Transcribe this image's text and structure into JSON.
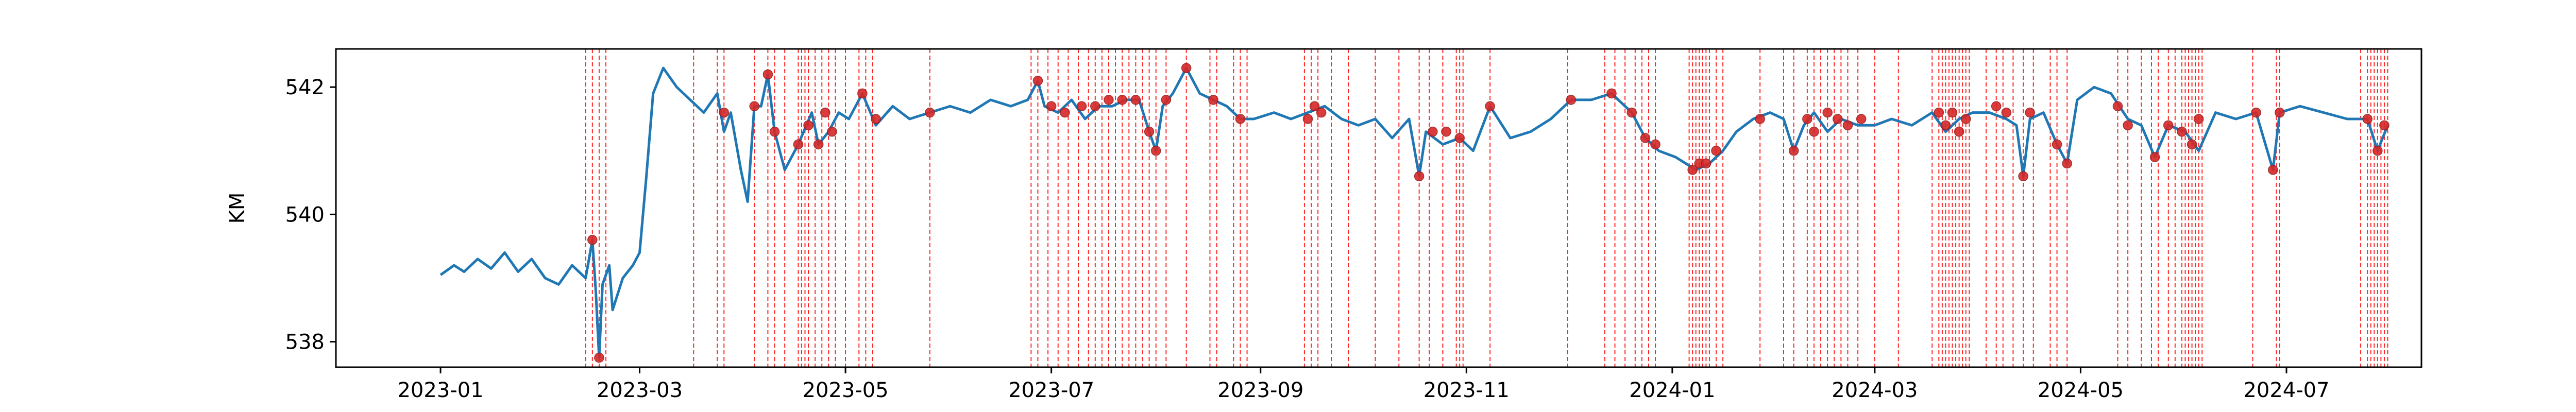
{
  "chart_data": {
    "type": "line",
    "title": "",
    "xlabel": "",
    "ylabel": "KM",
    "xlim": [
      "2022-12-01",
      "2024-08-10"
    ],
    "ylim": [
      537.6,
      542.6
    ],
    "x_ticks": [
      "2023-01",
      "2023-03",
      "2023-05",
      "2023-07",
      "2023-09",
      "2023-11",
      "2024-01",
      "2024-03",
      "2024-05",
      "2024-07"
    ],
    "y_ticks": [
      538,
      540,
      542
    ],
    "grid": false,
    "legend": "none",
    "colors": {
      "line": "#1f77b4",
      "marker": "#d62728",
      "vline": "#ff0000"
    },
    "series": [
      {
        "values": [
          [
            "2023-01-01",
            539.05
          ],
          [
            "2023-01-05",
            539.2
          ],
          [
            "2023-01-08",
            539.1
          ],
          [
            "2023-01-12",
            539.3
          ],
          [
            "2023-01-16",
            539.15
          ],
          [
            "2023-01-20",
            539.4
          ],
          [
            "2023-01-24",
            539.1
          ],
          [
            "2023-01-28",
            539.3
          ],
          [
            "2023-02-01",
            539.0
          ],
          [
            "2023-02-05",
            538.9
          ],
          [
            "2023-02-09",
            539.2
          ],
          [
            "2023-02-13",
            539.0
          ],
          [
            "2023-02-15",
            539.6
          ],
          [
            "2023-02-16",
            538.8
          ],
          [
            "2023-02-17",
            537.75
          ],
          [
            "2023-02-18",
            538.9
          ],
          [
            "2023-02-20",
            539.2
          ],
          [
            "2023-02-21",
            538.5
          ],
          [
            "2023-02-24",
            539.0
          ],
          [
            "2023-02-27",
            539.2
          ],
          [
            "2023-03-01",
            539.4
          ],
          [
            "2023-03-03",
            540.6
          ],
          [
            "2023-03-05",
            541.9
          ],
          [
            "2023-03-08",
            542.3
          ],
          [
            "2023-03-12",
            542.0
          ],
          [
            "2023-03-16",
            541.8
          ],
          [
            "2023-03-20",
            541.6
          ],
          [
            "2023-03-24",
            541.9
          ],
          [
            "2023-03-26",
            541.3
          ],
          [
            "2023-03-28",
            541.6
          ],
          [
            "2023-03-31",
            540.7
          ],
          [
            "2023-04-02",
            540.2
          ],
          [
            "2023-04-04",
            541.7
          ],
          [
            "2023-04-06",
            541.7
          ],
          [
            "2023-04-08",
            542.2
          ],
          [
            "2023-04-10",
            541.3
          ],
          [
            "2023-04-13",
            540.7
          ],
          [
            "2023-04-17",
            541.1
          ],
          [
            "2023-04-21",
            541.6
          ],
          [
            "2023-04-23",
            541.1
          ],
          [
            "2023-04-26",
            541.3
          ],
          [
            "2023-04-29",
            541.6
          ],
          [
            "2023-05-02",
            541.5
          ],
          [
            "2023-05-06",
            541.9
          ],
          [
            "2023-05-10",
            541.4
          ],
          [
            "2023-05-15",
            541.7
          ],
          [
            "2023-05-20",
            541.5
          ],
          [
            "2023-05-26",
            541.6
          ],
          [
            "2023-06-01",
            541.7
          ],
          [
            "2023-06-07",
            541.6
          ],
          [
            "2023-06-13",
            541.8
          ],
          [
            "2023-06-19",
            541.7
          ],
          [
            "2023-06-24",
            541.8
          ],
          [
            "2023-06-27",
            542.1
          ],
          [
            "2023-06-29",
            541.7
          ],
          [
            "2023-07-03",
            541.6
          ],
          [
            "2023-07-07",
            541.8
          ],
          [
            "2023-07-11",
            541.5
          ],
          [
            "2023-07-15",
            541.7
          ],
          [
            "2023-07-19",
            541.7
          ],
          [
            "2023-07-23",
            541.8
          ],
          [
            "2023-07-27",
            541.8
          ],
          [
            "2023-07-30",
            541.3
          ],
          [
            "2023-08-01",
            541.0
          ],
          [
            "2023-08-03",
            541.7
          ],
          [
            "2023-08-06",
            541.9
          ],
          [
            "2023-08-10",
            542.3
          ],
          [
            "2023-08-14",
            541.9
          ],
          [
            "2023-08-18",
            541.8
          ],
          [
            "2023-08-22",
            541.7
          ],
          [
            "2023-08-26",
            541.5
          ],
          [
            "2023-08-30",
            541.5
          ],
          [
            "2023-09-05",
            541.6
          ],
          [
            "2023-09-10",
            541.5
          ],
          [
            "2023-09-15",
            541.6
          ],
          [
            "2023-09-20",
            541.7
          ],
          [
            "2023-09-25",
            541.5
          ],
          [
            "2023-09-30",
            541.4
          ],
          [
            "2023-10-05",
            541.5
          ],
          [
            "2023-10-10",
            541.2
          ],
          [
            "2023-10-15",
            541.5
          ],
          [
            "2023-10-18",
            540.6
          ],
          [
            "2023-10-20",
            541.3
          ],
          [
            "2023-10-25",
            541.1
          ],
          [
            "2023-10-30",
            541.2
          ],
          [
            "2023-11-03",
            541.0
          ],
          [
            "2023-11-08",
            541.7
          ],
          [
            "2023-11-14",
            541.2
          ],
          [
            "2023-11-20",
            541.3
          ],
          [
            "2023-11-26",
            541.5
          ],
          [
            "2023-12-02",
            541.8
          ],
          [
            "2023-12-08",
            541.8
          ],
          [
            "2023-12-14",
            541.9
          ],
          [
            "2023-12-20",
            541.6
          ],
          [
            "2023-12-24",
            541.2
          ],
          [
            "2023-12-28",
            541.0
          ],
          [
            "2024-01-02",
            540.9
          ],
          [
            "2024-01-08",
            540.7
          ],
          [
            "2024-01-12",
            540.8
          ],
          [
            "2024-01-16",
            541.0
          ],
          [
            "2024-01-20",
            541.3
          ],
          [
            "2024-01-25",
            541.5
          ],
          [
            "2024-01-30",
            541.6
          ],
          [
            "2024-02-03",
            541.5
          ],
          [
            "2024-02-06",
            541.0
          ],
          [
            "2024-02-09",
            541.4
          ],
          [
            "2024-02-12",
            541.6
          ],
          [
            "2024-02-16",
            541.3
          ],
          [
            "2024-02-20",
            541.5
          ],
          [
            "2024-02-25",
            541.4
          ],
          [
            "2024-03-01",
            541.4
          ],
          [
            "2024-03-06",
            541.5
          ],
          [
            "2024-03-12",
            541.4
          ],
          [
            "2024-03-18",
            541.6
          ],
          [
            "2024-03-22",
            541.3
          ],
          [
            "2024-03-26",
            541.5
          ],
          [
            "2024-03-30",
            541.6
          ],
          [
            "2024-04-04",
            541.6
          ],
          [
            "2024-04-09",
            541.5
          ],
          [
            "2024-04-12",
            541.4
          ],
          [
            "2024-04-14",
            540.6
          ],
          [
            "2024-04-16",
            541.5
          ],
          [
            "2024-04-20",
            541.6
          ],
          [
            "2024-04-24",
            541.1
          ],
          [
            "2024-04-27",
            540.8
          ],
          [
            "2024-04-30",
            541.8
          ],
          [
            "2024-05-05",
            542.0
          ],
          [
            "2024-05-10",
            541.9
          ],
          [
            "2024-05-15",
            541.5
          ],
          [
            "2024-05-19",
            541.4
          ],
          [
            "2024-05-23",
            540.9
          ],
          [
            "2024-05-27",
            541.4
          ],
          [
            "2024-06-01",
            541.3
          ],
          [
            "2024-06-05",
            541.0
          ],
          [
            "2024-06-10",
            541.6
          ],
          [
            "2024-06-16",
            541.5
          ],
          [
            "2024-06-22",
            541.6
          ],
          [
            "2024-06-27",
            540.7
          ],
          [
            "2024-06-29",
            541.6
          ],
          [
            "2024-07-05",
            541.7
          ],
          [
            "2024-07-12",
            541.6
          ],
          [
            "2024-07-19",
            541.5
          ],
          [
            "2024-07-25",
            541.5
          ],
          [
            "2024-07-28",
            541.0
          ],
          [
            "2024-07-31",
            541.4
          ]
        ]
      }
    ],
    "marker_points": [
      [
        "2023-02-15",
        539.6
      ],
      [
        "2023-02-17",
        537.75
      ],
      [
        "2023-03-26",
        541.6
      ],
      [
        "2023-04-04",
        541.7
      ],
      [
        "2023-04-08",
        542.2
      ],
      [
        "2023-04-10",
        541.3
      ],
      [
        "2023-04-17",
        541.1
      ],
      [
        "2023-04-20",
        541.4
      ],
      [
        "2023-04-23",
        541.1
      ],
      [
        "2023-04-25",
        541.6
      ],
      [
        "2023-04-27",
        541.3
      ],
      [
        "2023-05-06",
        541.9
      ],
      [
        "2023-05-10",
        541.5
      ],
      [
        "2023-05-26",
        541.6
      ],
      [
        "2023-06-27",
        542.1
      ],
      [
        "2023-07-01",
        541.7
      ],
      [
        "2023-07-05",
        541.6
      ],
      [
        "2023-07-10",
        541.7
      ],
      [
        "2023-07-14",
        541.7
      ],
      [
        "2023-07-18",
        541.8
      ],
      [
        "2023-07-22",
        541.8
      ],
      [
        "2023-07-26",
        541.8
      ],
      [
        "2023-07-30",
        541.3
      ],
      [
        "2023-08-01",
        541.0
      ],
      [
        "2023-08-04",
        541.8
      ],
      [
        "2023-08-10",
        542.3
      ],
      [
        "2023-08-18",
        541.8
      ],
      [
        "2023-08-26",
        541.5
      ],
      [
        "2023-09-15",
        541.5
      ],
      [
        "2023-09-17",
        541.7
      ],
      [
        "2023-09-19",
        541.6
      ],
      [
        "2023-10-18",
        540.6
      ],
      [
        "2023-10-22",
        541.3
      ],
      [
        "2023-10-26",
        541.3
      ],
      [
        "2023-10-30",
        541.2
      ],
      [
        "2023-11-08",
        541.7
      ],
      [
        "2023-12-02",
        541.8
      ],
      [
        "2023-12-14",
        541.9
      ],
      [
        "2023-12-20",
        541.6
      ],
      [
        "2023-12-24",
        541.2
      ],
      [
        "2023-12-27",
        541.1
      ],
      [
        "2024-01-07",
        540.7
      ],
      [
        "2024-01-09",
        540.8
      ],
      [
        "2024-01-11",
        540.8
      ],
      [
        "2024-01-14",
        541.0
      ],
      [
        "2024-01-27",
        541.5
      ],
      [
        "2024-02-06",
        541.0
      ],
      [
        "2024-02-10",
        541.5
      ],
      [
        "2024-02-12",
        541.3
      ],
      [
        "2024-02-16",
        541.6
      ],
      [
        "2024-02-19",
        541.5
      ],
      [
        "2024-02-22",
        541.4
      ],
      [
        "2024-02-26",
        541.5
      ],
      [
        "2024-03-20",
        541.6
      ],
      [
        "2024-03-22",
        541.4
      ],
      [
        "2024-03-24",
        541.6
      ],
      [
        "2024-03-26",
        541.3
      ],
      [
        "2024-03-28",
        541.5
      ],
      [
        "2024-04-06",
        541.7
      ],
      [
        "2024-04-09",
        541.6
      ],
      [
        "2024-04-14",
        540.6
      ],
      [
        "2024-04-16",
        541.6
      ],
      [
        "2024-04-24",
        541.1
      ],
      [
        "2024-04-27",
        540.8
      ],
      [
        "2024-05-12",
        541.7
      ],
      [
        "2024-05-15",
        541.4
      ],
      [
        "2024-05-23",
        540.9
      ],
      [
        "2024-05-27",
        541.4
      ],
      [
        "2024-05-31",
        541.3
      ],
      [
        "2024-06-03",
        541.1
      ],
      [
        "2024-06-05",
        541.5
      ],
      [
        "2024-06-22",
        541.6
      ],
      [
        "2024-06-27",
        540.7
      ],
      [
        "2024-06-29",
        541.6
      ],
      [
        "2024-07-25",
        541.5
      ],
      [
        "2024-07-28",
        541.0
      ],
      [
        "2024-07-30",
        541.4
      ]
    ],
    "vertical_lines": [
      "2023-02-13",
      "2023-02-15",
      "2023-02-17",
      "2023-02-19",
      "2023-03-17",
      "2023-03-24",
      "2023-03-26",
      "2023-04-04",
      "2023-04-08",
      "2023-04-10",
      "2023-04-13",
      "2023-04-17",
      "2023-04-18",
      "2023-04-19",
      "2023-04-20",
      "2023-04-22",
      "2023-04-24",
      "2023-04-26",
      "2023-04-28",
      "2023-05-01",
      "2023-05-05",
      "2023-05-07",
      "2023-05-09",
      "2023-05-26",
      "2023-06-25",
      "2023-06-27",
      "2023-06-30",
      "2023-07-03",
      "2023-07-06",
      "2023-07-09",
      "2023-07-12",
      "2023-07-14",
      "2023-07-16",
      "2023-07-18",
      "2023-07-20",
      "2023-07-22",
      "2023-07-24",
      "2023-07-26",
      "2023-07-28",
      "2023-07-30",
      "2023-08-01",
      "2023-08-04",
      "2023-08-10",
      "2023-08-17",
      "2023-08-19",
      "2023-08-24",
      "2023-08-26",
      "2023-08-28",
      "2023-09-14",
      "2023-09-16",
      "2023-09-18",
      "2023-09-22",
      "2023-09-27",
      "2023-10-05",
      "2023-10-12",
      "2023-10-18",
      "2023-10-21",
      "2023-10-25",
      "2023-10-29",
      "2023-10-30",
      "2023-10-31",
      "2023-11-08",
      "2023-12-01",
      "2023-12-12",
      "2023-12-15",
      "2023-12-18",
      "2023-12-21",
      "2023-12-23",
      "2023-12-25",
      "2023-12-27",
      "2024-01-06",
      "2024-01-07",
      "2024-01-08",
      "2024-01-09",
      "2024-01-10",
      "2024-01-11",
      "2024-01-12",
      "2024-01-14",
      "2024-01-16",
      "2024-01-27",
      "2024-02-03",
      "2024-02-06",
      "2024-02-10",
      "2024-02-12",
      "2024-02-14",
      "2024-02-16",
      "2024-02-18",
      "2024-02-20",
      "2024-02-22",
      "2024-02-25",
      "2024-03-01",
      "2024-03-08",
      "2024-03-18",
      "2024-03-20",
      "2024-03-21",
      "2024-03-22",
      "2024-03-23",
      "2024-03-24",
      "2024-03-25",
      "2024-03-26",
      "2024-03-27",
      "2024-03-28",
      "2024-03-29",
      "2024-04-03",
      "2024-04-06",
      "2024-04-08",
      "2024-04-11",
      "2024-04-14",
      "2024-04-17",
      "2024-04-22",
      "2024-04-24",
      "2024-04-27",
      "2024-05-12",
      "2024-05-15",
      "2024-05-19",
      "2024-05-22",
      "2024-05-24",
      "2024-05-27",
      "2024-05-29",
      "2024-05-31",
      "2024-06-01",
      "2024-06-02",
      "2024-06-03",
      "2024-06-04",
      "2024-06-05",
      "2024-06-06",
      "2024-06-21",
      "2024-06-28",
      "2024-06-29",
      "2024-07-23",
      "2024-07-25",
      "2024-07-26",
      "2024-07-27",
      "2024-07-28",
      "2024-07-29",
      "2024-07-30",
      "2024-07-31"
    ]
  }
}
